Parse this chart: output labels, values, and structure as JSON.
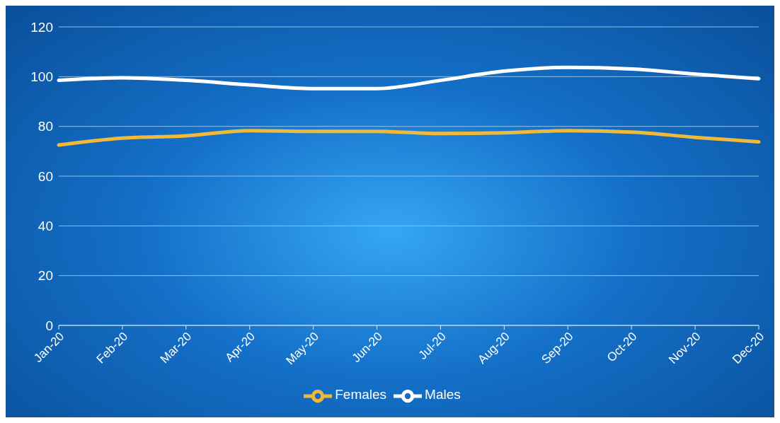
{
  "chart_data": {
    "type": "line",
    "categories": [
      "Jan-20",
      "Feb-20",
      "Mar-20",
      "Apr-20",
      "May-20",
      "Jun-20",
      "Jul-20",
      "Aug-20",
      "Sep-20",
      "Oct-20",
      "Nov-20",
      "Dec-20"
    ],
    "series": [
      {
        "name": "Males",
        "color": "#ffffff",
        "values": [
          98.5,
          99.5,
          98.5,
          96.7,
          95.2,
          95.2,
          98.5,
          102.2,
          103.7,
          103.1,
          101,
          99.2
        ]
      },
      {
        "name": "Females",
        "color": "#f0b93a",
        "values": [
          72.5,
          75.3,
          76.2,
          78.3,
          78,
          78,
          77.1,
          77.4,
          78.3,
          77.7,
          75.6,
          73.8
        ]
      }
    ],
    "ylim": [
      0,
      120
    ],
    "yticks": [
      0,
      20,
      40,
      60,
      80,
      100,
      120
    ],
    "grid": "y",
    "legend": "bottom",
    "marker": "none",
    "line_style": "solid"
  }
}
